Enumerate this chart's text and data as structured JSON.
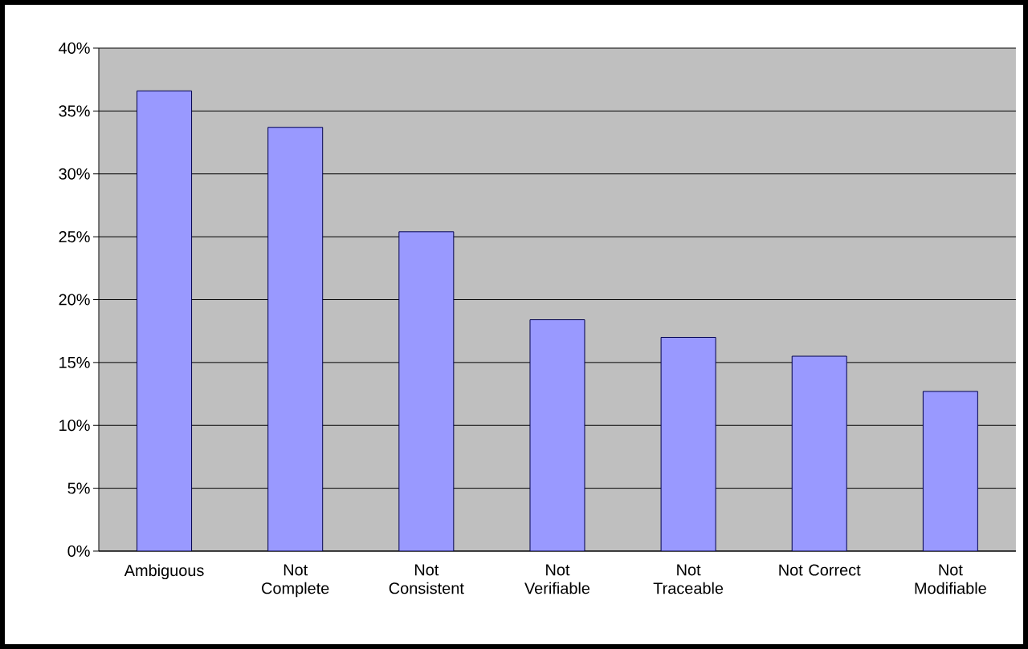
{
  "chart_data": {
    "type": "bar",
    "categories": [
      "Ambiguous",
      "Not Complete",
      "Not Consistent",
      "Not Verifiable",
      "Not Traceable",
      "Not Correct",
      "Not Modifiable"
    ],
    "values": [
      36.6,
      33.7,
      25.4,
      18.4,
      17.0,
      15.5,
      12.7
    ],
    "color": "#9999ff",
    "ylim": [
      0,
      40
    ],
    "yticks": [
      {
        "value": 0,
        "label": "0%"
      },
      {
        "value": 5,
        "label": "5%"
      },
      {
        "value": 10,
        "label": "10%"
      },
      {
        "value": 15,
        "label": "15%"
      },
      {
        "value": 20,
        "label": "20%"
      },
      {
        "value": 25,
        "label": "25%"
      },
      {
        "value": 30,
        "label": "30%"
      },
      {
        "value": 35,
        "label": "35%"
      },
      {
        "value": 40,
        "label": "40%"
      }
    ],
    "grid": "y"
  }
}
